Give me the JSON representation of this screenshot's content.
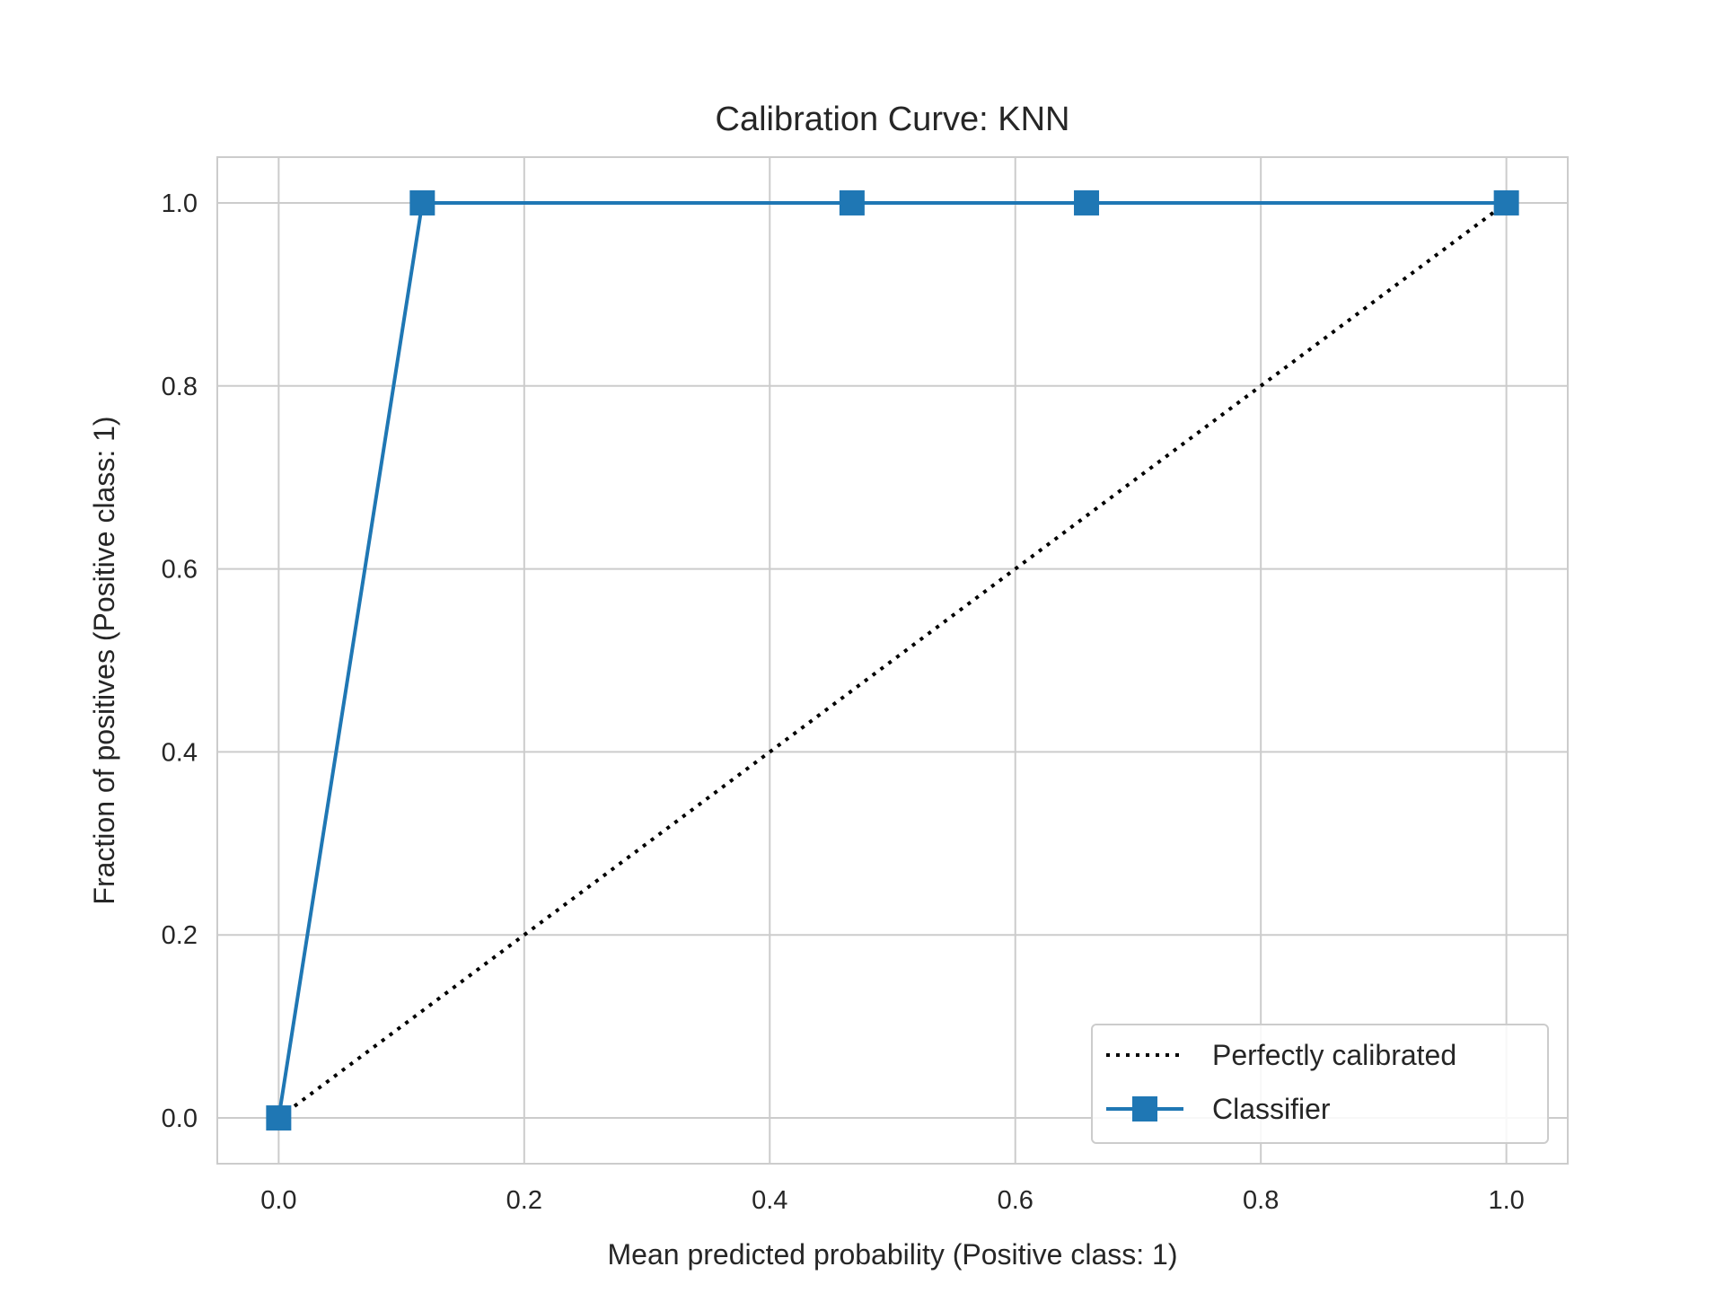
{
  "chart_data": {
    "type": "line",
    "title": "Calibration Curve: KNN",
    "xlabel": "Mean predicted probability (Positive class: 1)",
    "ylabel": "Fraction of positives (Positive class: 1)",
    "xlim": [
      -0.05,
      1.05
    ],
    "ylim": [
      -0.05,
      1.05
    ],
    "xticks": [
      0.0,
      0.2,
      0.4,
      0.6,
      0.8,
      1.0
    ],
    "yticks": [
      0.0,
      0.2,
      0.4,
      0.6,
      0.8,
      1.0
    ],
    "grid": true,
    "legend_position": "lower-right",
    "series": [
      {
        "name": "Perfectly calibrated",
        "style": "dotted",
        "color": "#000000",
        "x": [
          0.0,
          1.0
        ],
        "y": [
          0.0,
          1.0
        ]
      },
      {
        "name": "Classifier",
        "style": "solid",
        "marker": "square",
        "color": "#1f77b4",
        "x": [
          0.0,
          0.117,
          0.467,
          0.658,
          1.0
        ],
        "y": [
          0.0,
          1.0,
          1.0,
          1.0,
          1.0
        ]
      }
    ]
  }
}
